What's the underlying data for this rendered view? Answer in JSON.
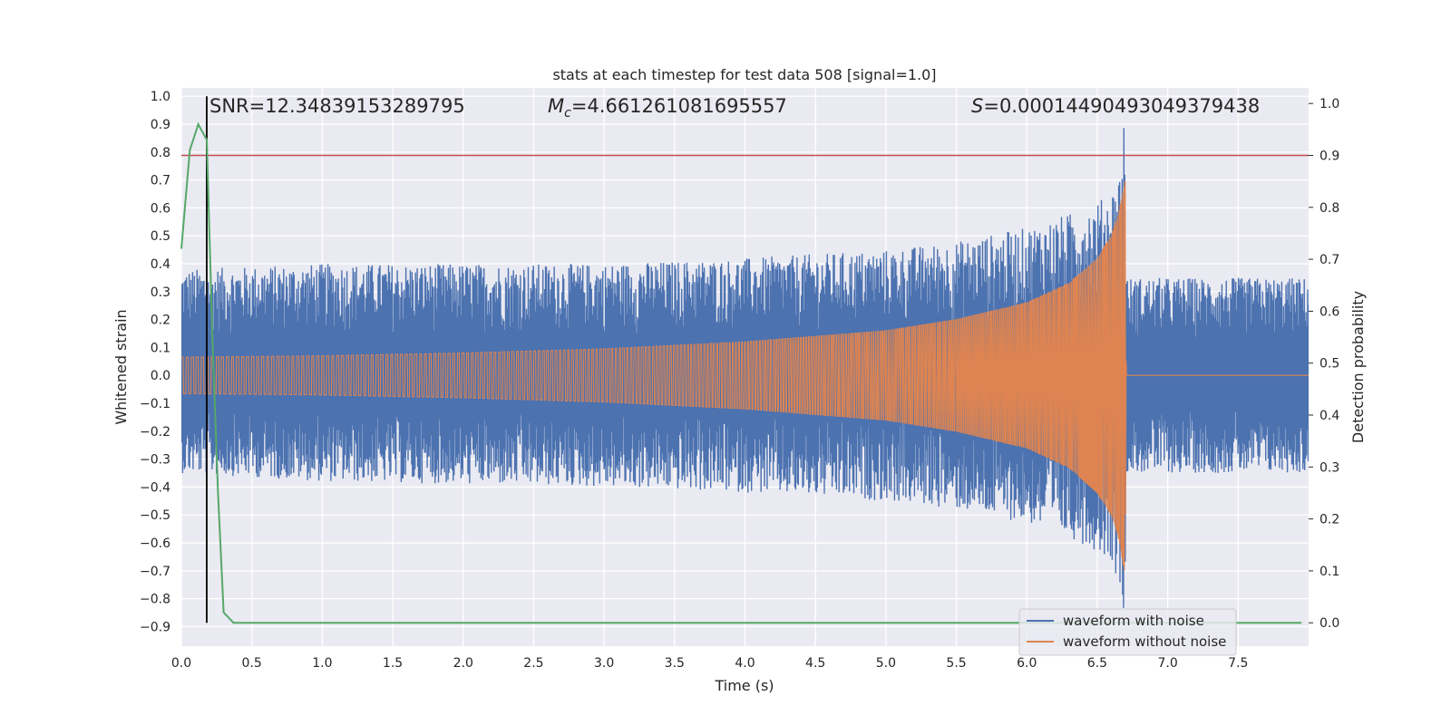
{
  "chart_data": {
    "type": "line",
    "title": "stats at each timestep for test data 508 [signal=1.0]",
    "xlabel": "Time (s)",
    "ylabel": "Whitened strain",
    "y2label": "Detection probability",
    "xlim": [
      0.0,
      8.0
    ],
    "ylim": [
      -0.97,
      1.03
    ],
    "y2lim": [
      -0.045,
      1.03
    ],
    "x_ticks": [
      "0.0",
      "0.5",
      "1.0",
      "1.5",
      "2.0",
      "2.5",
      "3.0",
      "3.5",
      "4.0",
      "4.5",
      "5.0",
      "5.5",
      "6.0",
      "6.5",
      "7.0",
      "7.5"
    ],
    "y_ticks": [
      "1.0",
      "0.9",
      "0.8",
      "0.7",
      "0.6",
      "0.5",
      "0.4",
      "0.3",
      "0.2",
      "0.1",
      "0.0",
      "−0.1",
      "−0.2",
      "−0.3",
      "−0.4",
      "−0.5",
      "−0.6",
      "−0.7",
      "−0.8",
      "−0.9"
    ],
    "y2_ticks": [
      "1.0",
      "0.9",
      "0.8",
      "0.7",
      "0.6",
      "0.5",
      "0.4",
      "0.3",
      "0.2",
      "0.1",
      "0.0"
    ],
    "grid": true,
    "legend_position": "bottom-right",
    "annotations": {
      "snr": "SNR=12.34839153289795",
      "mc_symbol": "M",
      "mc_sub": "c",
      "mc_value": "=4.661261081695557",
      "s_symbol": "S",
      "s_value": "=0.00014490493049379438"
    },
    "series": [
      {
        "name": "waveform with noise",
        "color": "#4c72b0",
        "axis": "left",
        "envelope": {
          "x": [
            0.0,
            1.0,
            2.0,
            3.0,
            4.0,
            5.0,
            5.5,
            6.0,
            6.3,
            6.5,
            6.6,
            6.67,
            6.69,
            6.71,
            7.0,
            8.0
          ],
          "upper": [
            0.38,
            0.4,
            0.4,
            0.4,
            0.42,
            0.45,
            0.48,
            0.53,
            0.58,
            0.62,
            0.66,
            0.75,
            1.0,
            0.35,
            0.35,
            0.35
          ],
          "lower": [
            -0.35,
            -0.38,
            -0.39,
            -0.4,
            -0.42,
            -0.45,
            -0.48,
            -0.53,
            -0.58,
            -0.63,
            -0.66,
            -0.78,
            -0.9,
            -0.35,
            -0.35,
            -0.35
          ]
        }
      },
      {
        "name": "waveform without noise",
        "color": "#dd8452",
        "axis": "left",
        "envelope": {
          "x": [
            0.0,
            1.0,
            2.0,
            3.0,
            4.0,
            5.0,
            5.5,
            6.0,
            6.3,
            6.5,
            6.6,
            6.65,
            6.7,
            6.705,
            8.0
          ],
          "upper": [
            0.065,
            0.07,
            0.08,
            0.095,
            0.12,
            0.16,
            0.2,
            0.26,
            0.33,
            0.42,
            0.5,
            0.58,
            0.7,
            0.0,
            0.0
          ],
          "lower": [
            -0.065,
            -0.07,
            -0.08,
            -0.095,
            -0.12,
            -0.16,
            -0.2,
            -0.26,
            -0.33,
            -0.42,
            -0.5,
            -0.58,
            -0.72,
            0.0,
            0.0
          ]
        }
      },
      {
        "color": "#55a868",
        "axis": "right",
        "x": [
          0.0,
          0.06,
          0.12,
          0.18,
          0.22,
          0.26,
          0.3,
          0.37,
          0.5,
          1.0,
          2.0,
          3.0,
          4.0,
          5.0,
          6.0,
          7.0,
          7.95
        ],
        "y": [
          0.72,
          0.91,
          0.96,
          0.93,
          0.55,
          0.25,
          0.02,
          0.0,
          0.0,
          0.0,
          0.0,
          0.0,
          0.0,
          0.0,
          0.0,
          0.0,
          0.0
        ]
      }
    ],
    "threshold_line": {
      "axis": "right",
      "y": 0.9,
      "color": "#c44e52"
    },
    "vertical_marker": {
      "x": 0.18,
      "color": "#000000"
    }
  }
}
